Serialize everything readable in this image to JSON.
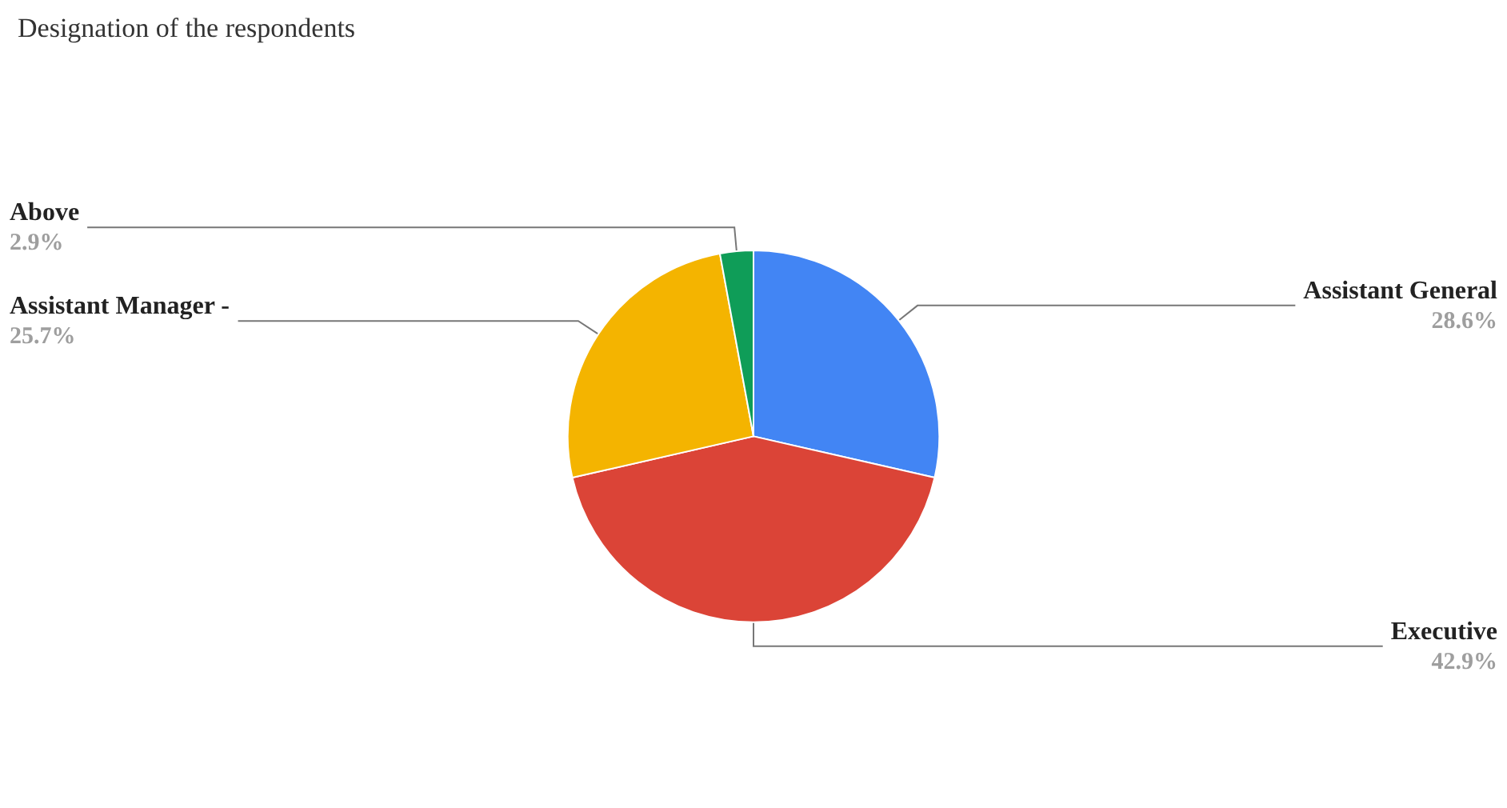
{
  "chart_data": {
    "type": "pie",
    "title": "Designation of the respondents",
    "categories": [
      "Assistant General",
      "Executive",
      "Assistant Manager -",
      "Above"
    ],
    "values": [
      28.6,
      42.9,
      25.7,
      2.9
    ],
    "value_labels": [
      "28.6%",
      "42.9%",
      "25.7%",
      "2.9%"
    ],
    "colors": [
      "#4285f4",
      "#db4437",
      "#f4b400",
      "#0f9d58"
    ],
    "legend": false
  }
}
